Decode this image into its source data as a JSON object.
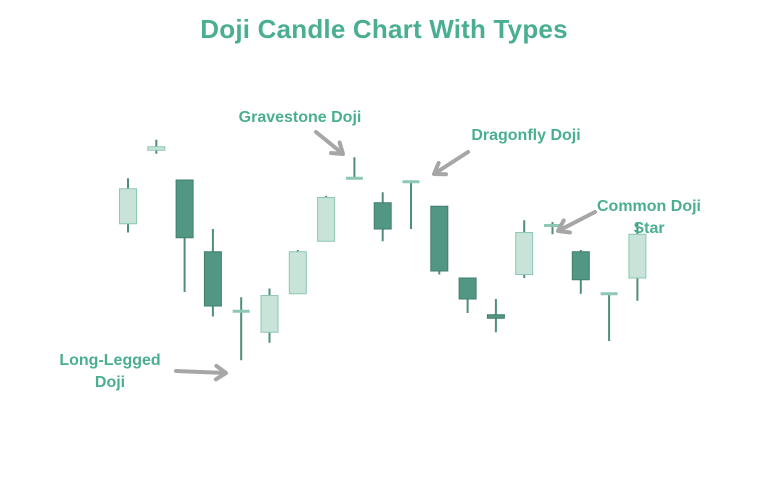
{
  "chart_data": {
    "type": "candlestick",
    "title": "Doji Candle Chart With Types",
    "colors": {
      "bullish_fill": "#c8e3d8",
      "bullish_stroke": "#8ec7b2",
      "bearish_fill": "#519783",
      "bearish_stroke": "#3f7f6c",
      "wick": "#4f8e7b",
      "title": "#4aae92",
      "annotation_text": "#4aae92",
      "arrow": "#a6a6a6"
    },
    "ylim": [
      0,
      100
    ],
    "candles": [
      {
        "open": 55,
        "close": 75,
        "high": 81,
        "low": 50
      },
      {
        "open": 97,
        "close": 99,
        "high": 103,
        "low": 95
      },
      {
        "open": 80,
        "close": 47,
        "high": 80,
        "low": 16
      },
      {
        "open": 39,
        "close": 8,
        "high": 52,
        "low": 2
      },
      {
        "open": 5,
        "close": 5,
        "high": 13,
        "low": -23
      },
      {
        "open": -7,
        "close": 14,
        "high": 18,
        "low": -13
      },
      {
        "open": 15,
        "close": 39,
        "high": 40,
        "low": 15
      },
      {
        "open": 45,
        "close": 70,
        "high": 71,
        "low": 45
      },
      {
        "open": 81,
        "close": 81,
        "high": 93,
        "low": 81
      },
      {
        "open": 67,
        "close": 52,
        "high": 73,
        "low": 45
      },
      {
        "open": 79,
        "close": 79,
        "high": 79,
        "low": 52
      },
      {
        "open": 65,
        "close": 28,
        "high": 65,
        "low": 26
      },
      {
        "open": 24,
        "close": 12,
        "high": 24,
        "low": 4
      },
      {
        "open": 3,
        "close": 1,
        "high": 12,
        "low": -7
      },
      {
        "open": 26,
        "close": 50,
        "high": 57,
        "low": 24
      },
      {
        "open": 53,
        "close": 54,
        "high": 56,
        "low": 49
      },
      {
        "open": 39,
        "close": 23,
        "high": 40,
        "low": 15
      },
      {
        "open": 15,
        "close": 15,
        "high": 15,
        "low": -12
      },
      {
        "open": 24,
        "close": 49,
        "high": 56,
        "low": 11
      }
    ],
    "annotations": [
      {
        "lines": [
          "Gravestone Doji"
        ],
        "candle_index": 8
      },
      {
        "lines": [
          "Dragonfly Doji"
        ],
        "candle_index": 10
      },
      {
        "lines": [
          "Common Doji",
          "Star"
        ],
        "candle_index": 15
      },
      {
        "lines": [
          "Long-Legged",
          "Doji"
        ],
        "candle_index": 4
      }
    ]
  }
}
